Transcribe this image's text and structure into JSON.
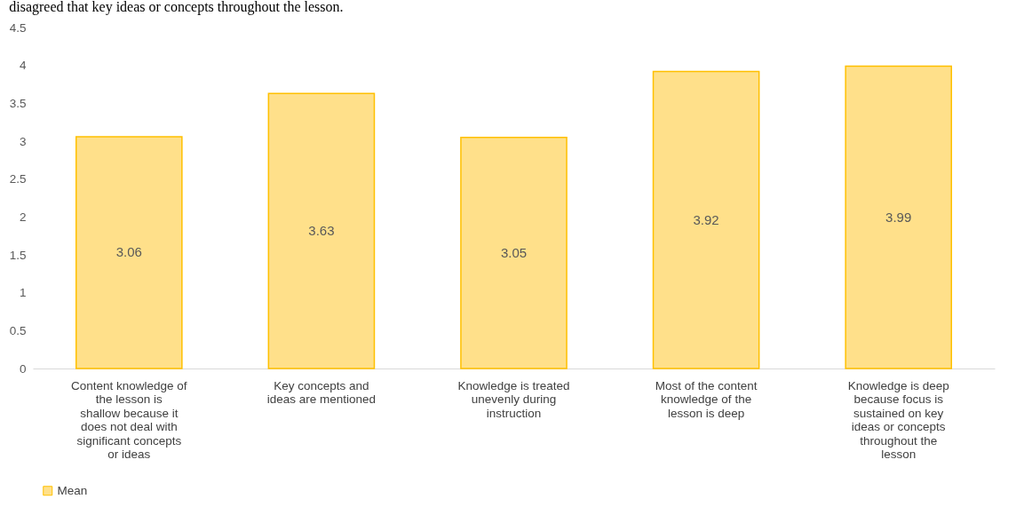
{
  "chart_data": {
    "type": "bar",
    "annotations": [
      "disagreed that key ideas or concepts throughout the lesson."
    ],
    "categories": [
      "Content knowledge of the lesson is shallow because it does not deal with significant concepts or ideas",
      "Key concepts and ideas are mentioned",
      "Knowledge is treated unevenly during instruction",
      "Most of the content knowledge of the lesson is deep",
      "Knowledge is deep because focus is sustained on key ideas or concepts throughout the lesson"
    ],
    "series": [
      {
        "name": "Mean",
        "color": "#ffe08a",
        "values": [
          3.06,
          3.63,
          3.05,
          3.92,
          3.99
        ]
      }
    ],
    "ylim": [
      0,
      4.5
    ],
    "yticks": [
      0,
      0.5,
      1,
      1.5,
      2,
      2.5,
      3,
      3.5,
      4,
      4.5
    ],
    "data_labels": true,
    "grid": false,
    "legend": "bottom"
  }
}
